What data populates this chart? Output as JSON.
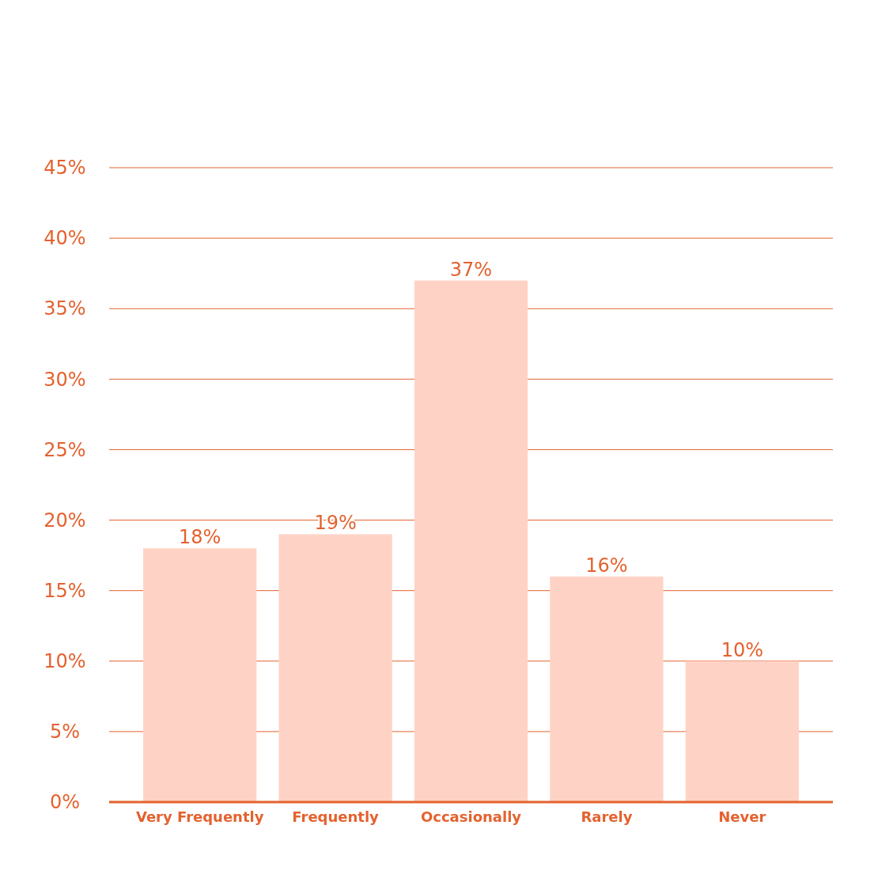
{
  "chart_data": {
    "type": "bar",
    "categories": [
      "Very Frequently",
      "Frequently",
      "Occasionally",
      "Rarely",
      "Never"
    ],
    "values": [
      18,
      19,
      37,
      16,
      10
    ],
    "color": "#fed3c6",
    "data_labels": true,
    "value_labels": [
      "18%",
      "19%",
      "37%",
      "16%",
      "10%"
    ],
    "ylim": [
      0,
      45
    ],
    "yticks": [
      {
        "value": 0,
        "label": "0%"
      },
      {
        "value": 5,
        "label": "5%"
      },
      {
        "value": 10,
        "label": "10%"
      },
      {
        "value": 15,
        "label": "15%"
      },
      {
        "value": 20,
        "label": "20%"
      },
      {
        "value": 25,
        "label": "25%"
      },
      {
        "value": 30,
        "label": "30%"
      },
      {
        "value": 35,
        "label": "35%"
      },
      {
        "value": 40,
        "label": "40%"
      },
      {
        "value": 45,
        "label": "45%"
      }
    ],
    "grid": "y"
  }
}
